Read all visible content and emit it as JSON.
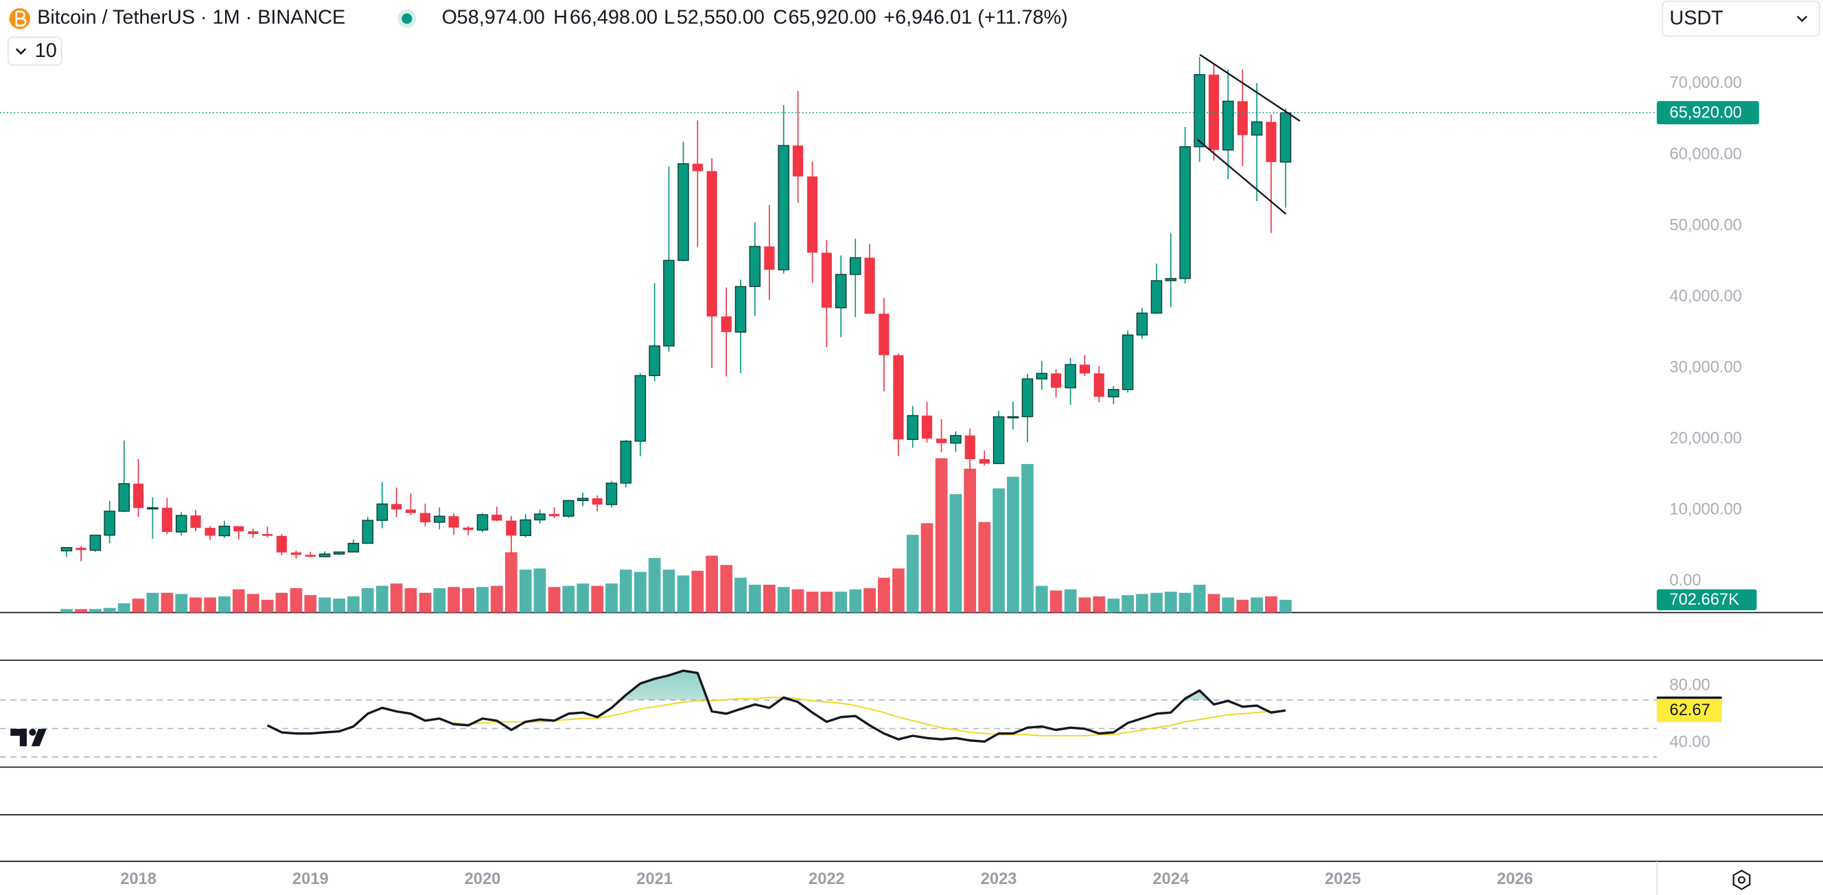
{
  "header": {
    "symbol": "Bitcoin / TetherUS · 1M · BINANCE",
    "ohlc": [
      {
        "key": "O",
        "value": "58,974.00"
      },
      {
        "key": "H",
        "value": "66,498.00"
      },
      {
        "key": "L",
        "value": "52,550.00"
      },
      {
        "key": "C",
        "value": "65,920.00"
      }
    ],
    "change": "+6,946.01 (+11.78%)"
  },
  "ui": {
    "currency": "USDT",
    "indicators": "10"
  },
  "chart_data": {
    "type": "candlestick",
    "x": [
      2017.583,
      2017.667,
      2017.75,
      2017.833,
      2017.917,
      2018,
      2018.083,
      2018.167,
      2018.25,
      2018.333,
      2018.417,
      2018.5,
      2018.583,
      2018.667,
      2018.75,
      2018.833,
      2018.917,
      2019,
      2019.083,
      2019.167,
      2019.25,
      2019.333,
      2019.417,
      2019.5,
      2019.583,
      2019.667,
      2019.75,
      2019.833,
      2019.917,
      2020,
      2020.083,
      2020.167,
      2020.25,
      2020.333,
      2020.417,
      2020.5,
      2020.583,
      2020.667,
      2020.75,
      2020.833,
      2020.917,
      2021,
      2021.083,
      2021.167,
      2021.25,
      2021.333,
      2021.417,
      2021.5,
      2021.583,
      2021.667,
      2021.75,
      2021.833,
      2021.917,
      2022,
      2022.083,
      2022.167,
      2022.25,
      2022.333,
      2022.417,
      2022.5,
      2022.583,
      2022.667,
      2022.75,
      2022.833,
      2022.917,
      2023,
      2023.083,
      2023.167,
      2023.25,
      2023.333,
      2023.417,
      2023.5,
      2023.583,
      2023.667,
      2023.75,
      2023.833,
      2023.917,
      2024,
      2024.083,
      2024.167,
      2024.25,
      2024.333,
      2024.417,
      2024.5,
      2024.583,
      2024.667
    ],
    "open": [
      4261,
      4690,
      4341,
      6463,
      9838,
      13716,
      10285,
      10326,
      6922,
      9246,
      7500,
      6391,
      7735,
      7011,
      6626,
      6369,
      4041,
      3701,
      3434,
      3814,
      4102,
      5320,
      8555,
      10854,
      10080,
      9588,
      8289,
      9140,
      7540,
      7195,
      9351,
      8523,
      6412,
      8620,
      9448,
      9138,
      11335,
      11649,
      10776,
      13791,
      19695,
      28923,
      33092,
      45134,
      58739,
      57697,
      37253,
      35045,
      41461,
      47100,
      43820,
      61300,
      56950,
      46217,
      38466,
      43160,
      45510,
      37631,
      31801,
      19942,
      23296,
      20048,
      19423,
      20491,
      17165,
      16542,
      23125,
      23142,
      28465,
      29233,
      27211,
      30472,
      29232,
      25940,
      26962,
      34639,
      37723,
      42284,
      42581,
      61130,
      71280,
      60672,
      67540,
      62772,
      64628,
      58974
    ],
    "high": [
      4745,
      4939,
      6470,
      11300,
      19798,
      17176,
      11786,
      11704,
      9759,
      10020,
      7754,
      8507,
      7750,
      7410,
      7680,
      6615,
      4313,
      4140,
      4198,
      4120,
      5900,
      9074,
      13970,
      13147,
      12325,
      10905,
      10370,
      9513,
      7750,
      9578,
      10500,
      9189,
      9460,
      10068,
      10380,
      11444,
      12468,
      12050,
      14100,
      19863,
      29300,
      41950,
      58352,
      61844,
      64854,
      59500,
      41330,
      42448,
      50500,
      52920,
      67000,
      69000,
      59053,
      47990,
      45821,
      48189,
      47444,
      39845,
      31986,
      24668,
      25211,
      22800,
      21085,
      21480,
      18387,
      23960,
      25250,
      29184,
      31000,
      29820,
      31431,
      31805,
      30244,
      27488,
      35280,
      38450,
      44700,
      48969,
      63913,
      73777,
      72797,
      71979,
      71997,
      70080,
      65660,
      66498
    ],
    "low": [
      3400,
      2817,
      4110,
      5325,
      9722,
      9035,
      6000,
      6600,
      6430,
      7032,
      5755,
      6070,
      5880,
      6100,
      6180,
      3652,
      3157,
      3349,
      3401,
      3689,
      4067,
      5316,
      7444,
      9010,
      9320,
      7710,
      7300,
      6515,
      6435,
      6871,
      8445,
      3782,
      6150,
      8106,
      8833,
      8893,
      10518,
      9825,
      10374,
      13195,
      17572,
      28130,
      32296,
      45000,
      47044,
      30000,
      28805,
      29278,
      37332,
      39600,
      43283,
      53256,
      42000,
      32917,
      34322,
      37155,
      37578,
      26700,
      17622,
      18782,
      19520,
      18125,
      18190,
      15476,
      16256,
      16500,
      21351,
      19549,
      26942,
      25811,
      24800,
      28862,
      25166,
      24901,
      26538,
      34097,
      37615,
      38555,
      41884,
      59005,
      59191,
      56552,
      58402,
      53485,
      49000,
      52550
    ],
    "close": [
      4724,
      4378,
      6463,
      9838,
      13716,
      10285,
      10327,
      6923,
      9246,
      7494,
      6391,
      7730,
      7011,
      6626,
      6371,
      4041,
      3702,
      3434,
      3814,
      4103,
      5320,
      8555,
      10855,
      10085,
      9588,
      8289,
      9140,
      7541,
      7195,
      9352,
      8523,
      6410,
      8620,
      9448,
      9138,
      11335,
      11649,
      10776,
      13791,
      19695,
      28923,
      33092,
      45135,
      58740,
      57694,
      37253,
      35045,
      41461,
      47100,
      43824,
      61300,
      56950,
      46216,
      38466,
      43160,
      45510,
      37630,
      31801,
      19942,
      23293,
      20050,
      19423,
      20491,
      17164,
      16542,
      23125,
      23142,
      28465,
      29233,
      27211,
      30472,
      29232,
      25940,
      26963,
      34639,
      37723,
      42283,
      42582,
      61130,
      71280,
      60672,
      67540,
      62772,
      64628,
      58974,
      65920
    ],
    "volume": [
      192000,
      192000,
      192000,
      256000,
      512000,
      768000,
      1088000,
      1088000,
      1024000,
      832000,
      832000,
      896000,
      1280000,
      1024000,
      704000,
      1088000,
      1344000,
      960000,
      832000,
      768000,
      896000,
      1344000,
      1472000,
      1600000,
      1344000,
      1088000,
      1344000,
      1408000,
      1344000,
      1408000,
      1472000,
      3328000,
      2368000,
      2432000,
      1408000,
      1472000,
      1600000,
      1472000,
      1600000,
      2368000,
      2240000,
      3008000,
      2368000,
      2048000,
      2304000,
      3136000,
      2624000,
      1920000,
      1536000,
      1536000,
      1408000,
      1280000,
      1152000,
      1152000,
      1152000,
      1280000,
      1344000,
      1920000,
      2432000,
      4288000,
      4928000,
      8512000,
      6528000,
      7936000,
      4992000,
      6848000,
      7488000,
      8192000,
      1472000,
      1216000,
      1280000,
      832000,
      896000,
      768000,
      960000,
      1024000,
      1088000,
      1152000,
      1088000,
      1536000,
      1024000,
      832000,
      704000,
      832000,
      896000,
      702667
    ],
    "last_close_label": "65,920.00",
    "last_volume_label": "702.667K",
    "colors": {
      "up": "#089981",
      "down": "#f23645",
      "up_border": "#0b3b33",
      "volume_up": "#4fb5aa",
      "volume_down": "#f05560"
    },
    "xlim": [
      2017.196,
      2026.824
    ],
    "xticks": [
      2018,
      2019,
      2020,
      2021,
      2022,
      2023,
      2024,
      2025,
      2026
    ],
    "ylim": [
      -4420,
      81780
    ],
    "yticks": [
      {
        "value": 0,
        "label": "0.00"
      },
      {
        "value": 10000,
        "label": "10,000.00"
      },
      {
        "value": 20000,
        "label": "20,000.00"
      },
      {
        "value": 30000,
        "label": "30,000.00"
      },
      {
        "value": 40000,
        "label": "40,000.00"
      },
      {
        "value": 50000,
        "label": "50,000.00"
      },
      {
        "value": 60000,
        "label": "60,000.00"
      },
      {
        "value": 70000,
        "label": "70,000.00"
      }
    ],
    "vlim": [
      0,
      10000000
    ],
    "grid": false,
    "trendlines": [
      {
        "x": [
          2024.169,
          2024.75
        ],
        "y": [
          74090,
          64760
        ]
      },
      {
        "x": [
          2024.155,
          2024.669
        ],
        "y": [
          62140,
          51670
        ]
      }
    ],
    "rsi": {
      "values": [
        null,
        null,
        null,
        null,
        null,
        null,
        null,
        null,
        null,
        null,
        null,
        null,
        null,
        null,
        52.2,
        47.3,
        46.5,
        46.5,
        47.3,
        48,
        51.4,
        60.4,
        64.5,
        62,
        60.4,
        55.5,
        57,
        53,
        52.2,
        57,
        55.5,
        49,
        54.7,
        56.3,
        55.5,
        60.4,
        61.2,
        58,
        64.5,
        73.5,
        81.6,
        84.9,
        87.3,
        90.6,
        89,
        62,
        60.4,
        63.7,
        66.9,
        64.5,
        71.8,
        68.6,
        61.2,
        54.7,
        58,
        58.8,
        52.2,
        46.5,
        42.4,
        44.9,
        43.3,
        42.4,
        43.3,
        41.6,
        40.8,
        46.5,
        46.5,
        50.6,
        51.4,
        49,
        50.6,
        49.8,
        46.5,
        47.3,
        53.9,
        57.1,
        60.4,
        61.2,
        71,
        76.7,
        66.9,
        69.4,
        65.3,
        66.1,
        61.2,
        62.67
      ],
      "ma": [
        null,
        null,
        null,
        null,
        null,
        null,
        null,
        null,
        null,
        null,
        null,
        null,
        null,
        null,
        null,
        null,
        null,
        null,
        null,
        null,
        null,
        null,
        null,
        null,
        null,
        null,
        null,
        53.9,
        53,
        53.9,
        54.7,
        54.7,
        54.7,
        54.7,
        55.5,
        56.3,
        57.1,
        57.1,
        58.8,
        61.2,
        63.7,
        65.3,
        66.9,
        68.6,
        69.4,
        69.4,
        70.2,
        71,
        71,
        71.8,
        71.8,
        71,
        69.4,
        68.6,
        67.8,
        66.1,
        63.7,
        61.2,
        58,
        55.5,
        53,
        50.6,
        49,
        47.3,
        46.5,
        45.7,
        45.7,
        45.7,
        44.9,
        44.9,
        44.9,
        44.9,
        45.7,
        45.7,
        47.3,
        49,
        50.6,
        52.2,
        54.7,
        56.3,
        58,
        59.6,
        60.4,
        61.2,
        62,
        62.3
      ],
      "color": "#131722",
      "ma_color": "#f2d72a",
      "fill_color": "#089981",
      "ylim": [
        22.86,
        97.96
      ],
      "yticks": [
        {
          "value": 80,
          "label": "80.00"
        },
        {
          "value": 40,
          "label": "40.00"
        }
      ],
      "bands": [
        70,
        50,
        30
      ]
    }
  }
}
